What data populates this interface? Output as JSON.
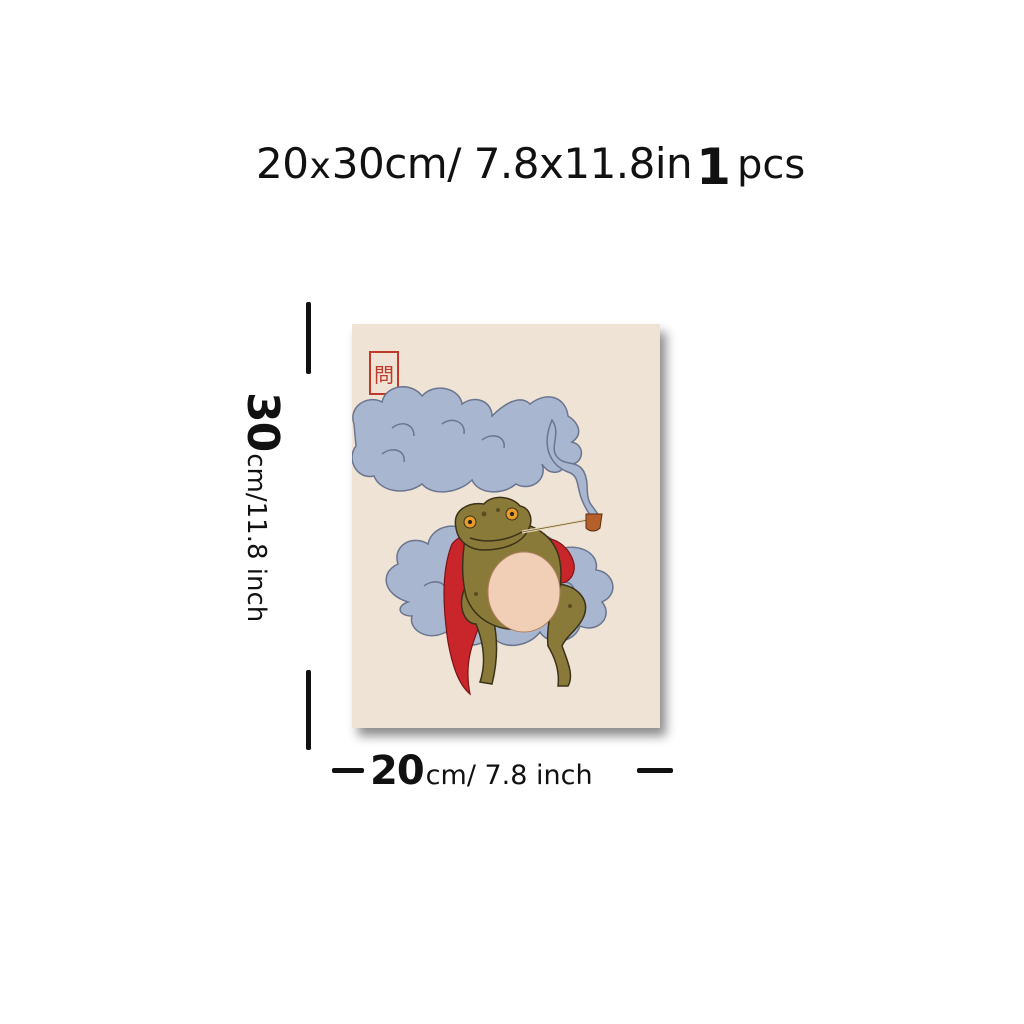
{
  "title": {
    "size_part1": "20",
    "size_x": "x",
    "size_part2": "30cm/ 7.8x11.8in",
    "quantity": "1",
    "unit": "pcs"
  },
  "height_dimension": {
    "value": "30",
    "unit": "cm/11.8 inch"
  },
  "width_dimension": {
    "value": "20",
    "unit": "cm/ 7.8 inch"
  },
  "artwork": {
    "seal_glyph": "問",
    "subject": "frog-smoking-pipe-on-cloud",
    "colors": {
      "background": "#eee3d4",
      "cloud": "#a9b6cf",
      "robe": "#c8262a",
      "frog": "#8a7a3a",
      "belly": "#f1cfb6",
      "seal": "#c0392b"
    }
  }
}
